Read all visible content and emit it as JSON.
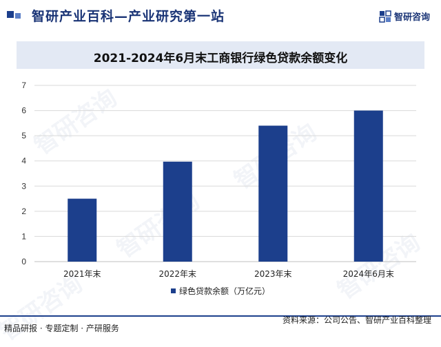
{
  "header": {
    "site_title": "智研产业百科—产业研究第一站",
    "brand_name": "智研咨询",
    "brand_icon": "zhiyan-logo-icon"
  },
  "watermark_text": "智研咨询",
  "chart_data": {
    "type": "bar",
    "title": "2021-2024年6月末工商银行绿色贷款余额变化",
    "categories": [
      "2021年末",
      "2022年末",
      "2023年末",
      "2024年6月末"
    ],
    "series": [
      {
        "name": "绿色贷款余额（万亿元）",
        "values": [
          2.5,
          3.97,
          5.4,
          6.0
        ]
      }
    ],
    "y_ticks": [
      "0",
      "1",
      "2",
      "3",
      "4",
      "5",
      "6",
      "7"
    ],
    "ylim": [
      0,
      7
    ],
    "grid": true,
    "legend": "bottom-center",
    "bar_color": "#1c3f8c"
  },
  "footer": {
    "left": "精品研报 · 专题定制 · 产研服务",
    "right": "资料来源：公司公告、智研产业百科整理"
  }
}
